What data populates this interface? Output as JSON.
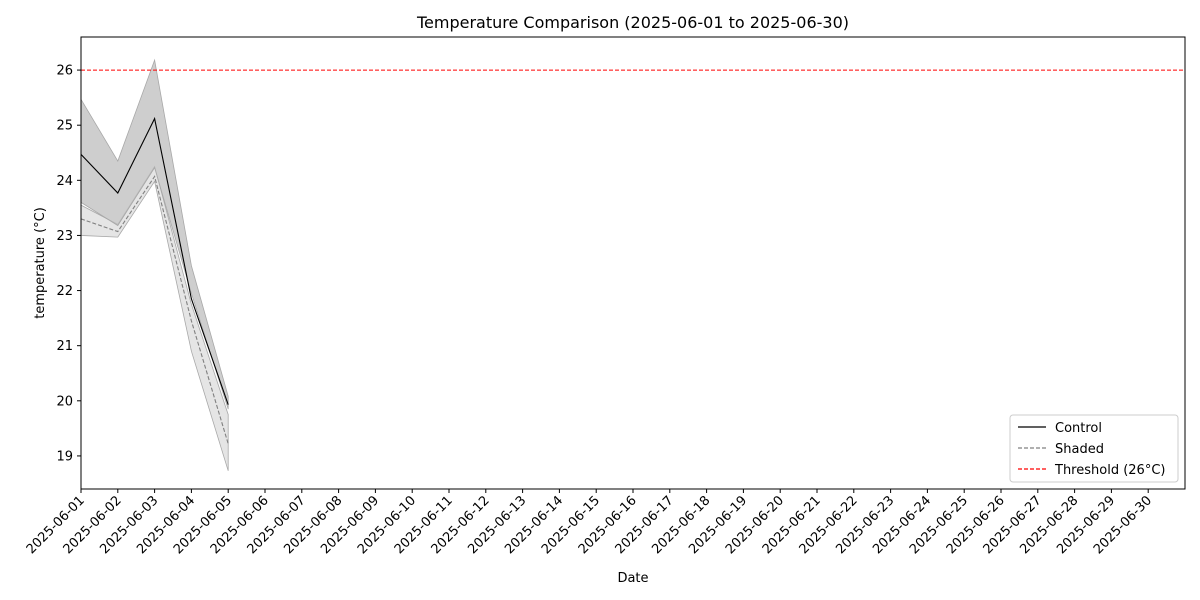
{
  "chart_data": {
    "type": "line",
    "title": "Temperature Comparison (2025-06-01 to 2025-06-30)",
    "xlabel": "Date",
    "ylabel": "temperature (°C)",
    "x_ticks": [
      "2025-06-01",
      "2025-06-02",
      "2025-06-03",
      "2025-06-04",
      "2025-06-05",
      "2025-06-06",
      "2025-06-07",
      "2025-06-08",
      "2025-06-09",
      "2025-06-10",
      "2025-06-11",
      "2025-06-12",
      "2025-06-13",
      "2025-06-14",
      "2025-06-15",
      "2025-06-16",
      "2025-06-17",
      "2025-06-18",
      "2025-06-19",
      "2025-06-20",
      "2025-06-21",
      "2025-06-22",
      "2025-06-23",
      "2025-06-24",
      "2025-06-25",
      "2025-06-26",
      "2025-06-27",
      "2025-06-28",
      "2025-06-29",
      "2025-06-30"
    ],
    "xlim": [
      "2025-06-01",
      "2025-07-01"
    ],
    "ylim": [
      18.4,
      26.6
    ],
    "y_ticks": [
      19,
      20,
      21,
      22,
      23,
      24,
      25,
      26
    ],
    "grid": false,
    "legend_position": "lower-right",
    "series": [
      {
        "name": "Control",
        "style": "solid",
        "color": "#000000",
        "x": [
          "2025-06-01",
          "2025-06-02",
          "2025-06-03",
          "2025-06-04",
          "2025-06-05"
        ],
        "values": [
          24.47,
          23.77,
          25.12,
          21.85,
          19.93
        ],
        "band_upper": [
          25.47,
          24.35,
          26.18,
          22.45,
          20.08
        ],
        "band_lower": [
          23.6,
          23.18,
          24.23,
          21.95,
          19.85
        ],
        "band_color": "#bdbdbd"
      },
      {
        "name": "Shaded",
        "style": "dashed",
        "color": "#808080",
        "x": [
          "2025-06-01",
          "2025-06-02",
          "2025-06-03",
          "2025-06-04",
          "2025-06-05"
        ],
        "values": [
          23.3,
          23.07,
          24.07,
          21.45,
          19.22
        ],
        "band_upper": [
          23.55,
          23.2,
          24.25,
          21.75,
          19.75
        ],
        "band_lower": [
          23.0,
          22.97,
          23.98,
          20.9,
          18.73
        ],
        "band_color": "#e0e0e0"
      }
    ],
    "threshold": {
      "name": "Threshold (26°C)",
      "value": 26,
      "color": "#ff0000",
      "style": "dashed"
    }
  }
}
